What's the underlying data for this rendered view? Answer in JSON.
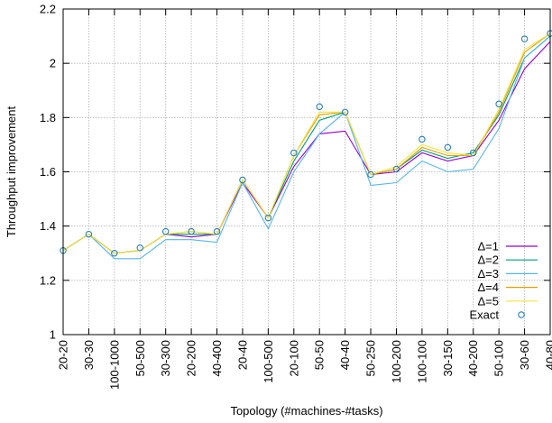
{
  "chart_data": {
    "type": "line",
    "xlabel": "Topology (#machines-#tasks)",
    "ylabel": "Throughput improvement",
    "ylim": [
      1,
      2.2
    ],
    "yticks": [
      1,
      1.2,
      1.4,
      1.6,
      1.8,
      2,
      2.2
    ],
    "ytick_labels": [
      "1",
      "1.2",
      "1.4",
      "1.6",
      "1.8",
      "2",
      "2.2"
    ],
    "grid": true,
    "legend_position": "bottom-right",
    "categories": [
      "20-20",
      "30-30",
      "100-1000",
      "50-500",
      "30-300",
      "20-200",
      "40-400",
      "20-40",
      "100-500",
      "20-100",
      "50-50",
      "40-40",
      "50-250",
      "100-200",
      "100-100",
      "30-150",
      "40-200",
      "50-100",
      "30-60",
      "40-80"
    ],
    "series": [
      {
        "name": "Δ=1",
        "color": "#9400d3",
        "style": "line",
        "values": [
          1.31,
          1.37,
          1.3,
          1.31,
          1.37,
          1.36,
          1.37,
          1.56,
          1.43,
          1.62,
          1.74,
          1.75,
          1.59,
          1.6,
          1.67,
          1.64,
          1.66,
          1.79,
          1.98,
          2.08
        ]
      },
      {
        "name": "Δ=2",
        "color": "#009e73",
        "style": "line",
        "values": [
          1.31,
          1.37,
          1.3,
          1.31,
          1.37,
          1.37,
          1.37,
          1.57,
          1.43,
          1.64,
          1.79,
          1.82,
          1.59,
          1.61,
          1.68,
          1.65,
          1.67,
          1.81,
          2.02,
          2.1
        ]
      },
      {
        "name": "Δ=3",
        "color": "#56b4e9",
        "style": "line",
        "values": [
          1.31,
          1.37,
          1.28,
          1.28,
          1.35,
          1.35,
          1.34,
          1.56,
          1.39,
          1.6,
          1.74,
          1.82,
          1.55,
          1.56,
          1.64,
          1.6,
          1.61,
          1.76,
          2.02,
          2.1
        ]
      },
      {
        "name": "Δ=4",
        "color": "#e69f00",
        "style": "line",
        "values": [
          1.31,
          1.37,
          1.3,
          1.31,
          1.37,
          1.38,
          1.37,
          1.57,
          1.43,
          1.66,
          1.81,
          1.82,
          1.59,
          1.61,
          1.69,
          1.66,
          1.66,
          1.82,
          2.04,
          2.11
        ]
      },
      {
        "name": "Δ=5",
        "color": "#f0e442",
        "style": "line",
        "values": [
          1.31,
          1.37,
          1.3,
          1.31,
          1.37,
          1.38,
          1.37,
          1.57,
          1.43,
          1.66,
          1.82,
          1.82,
          1.59,
          1.62,
          1.7,
          1.67,
          1.66,
          1.83,
          2.05,
          2.11
        ]
      },
      {
        "name": "Exact",
        "color": "#2a7fb0",
        "style": "marker",
        "values": [
          1.31,
          1.37,
          1.3,
          1.32,
          1.38,
          1.38,
          1.38,
          1.57,
          1.43,
          1.67,
          1.84,
          1.82,
          1.59,
          1.61,
          1.72,
          1.69,
          1.67,
          1.85,
          2.09,
          2.11
        ]
      }
    ]
  }
}
